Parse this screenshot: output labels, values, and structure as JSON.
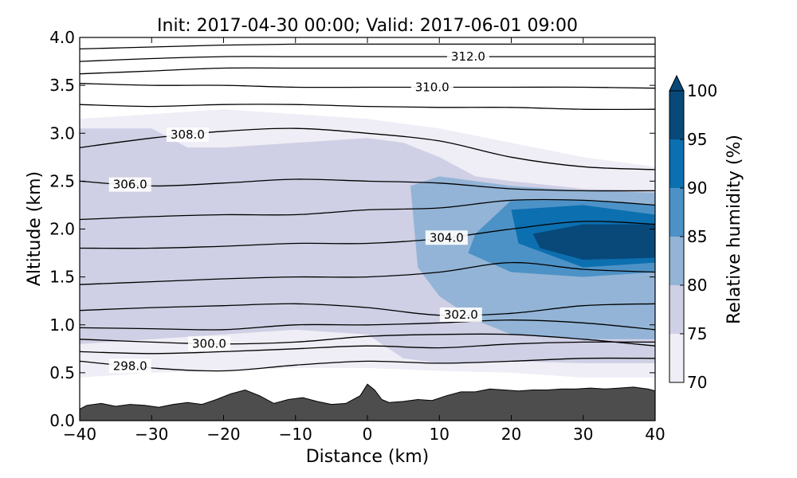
{
  "chart_data": {
    "type": "contour",
    "title": "Init: 2017-04-30 00:00; Valid: 2017-06-01 09:00",
    "xlabel": "Distance (km)",
    "ylabel": "Altitude (km)",
    "xlim": [
      -40,
      40
    ],
    "ylim": [
      0.0,
      4.0
    ],
    "x_ticks": [
      -40,
      -30,
      -20,
      -10,
      0,
      10,
      20,
      30,
      40
    ],
    "x_tick_labels": [
      "−40",
      "−30",
      "−20",
      "−10",
      "0",
      "10",
      "20",
      "30",
      "40"
    ],
    "y_ticks": [
      0.0,
      0.5,
      1.0,
      1.5,
      2.0,
      2.5,
      3.0,
      3.5,
      4.0
    ],
    "y_tick_labels": [
      "0.0",
      "0.5",
      "1.0",
      "1.5",
      "2.0",
      "2.5",
      "3.0",
      "3.5",
      "4.0"
    ],
    "colorbar": {
      "label": "Relative humidity (%)",
      "levels": [
        70,
        75,
        80,
        85,
        90,
        95,
        100
      ],
      "tick_labels": [
        "70",
        "75",
        "80",
        "85",
        "90",
        "95",
        "100"
      ],
      "colors": [
        "#efedf5",
        "#cfcfe5",
        "#93b4d6",
        "#4d92c6",
        "#0c6fb0",
        "#08497a"
      ],
      "extend": "max"
    },
    "terrain": {
      "color": "#4d4d4d",
      "x": [
        -40,
        -39,
        -37,
        -35,
        -33,
        -31,
        -29,
        -27,
        -25,
        -23,
        -21,
        -19,
        -17,
        -15,
        -13,
        -11,
        -9,
        -7,
        -5,
        -3,
        -1,
        0,
        1,
        2,
        3,
        5,
        7,
        9,
        11,
        13,
        15,
        17,
        19,
        21,
        23,
        25,
        27,
        29,
        31,
        33,
        35,
        37,
        38,
        39,
        40
      ],
      "altitude": [
        0.12,
        0.16,
        0.18,
        0.15,
        0.17,
        0.16,
        0.14,
        0.17,
        0.19,
        0.17,
        0.22,
        0.28,
        0.32,
        0.26,
        0.18,
        0.22,
        0.24,
        0.2,
        0.17,
        0.18,
        0.26,
        0.38,
        0.32,
        0.22,
        0.19,
        0.2,
        0.22,
        0.21,
        0.26,
        0.3,
        0.3,
        0.33,
        0.32,
        0.31,
        0.32,
        0.32,
        0.33,
        0.33,
        0.34,
        0.33,
        0.34,
        0.35,
        0.34,
        0.33,
        0.31
      ]
    },
    "rh_shading": [
      {
        "level": 70,
        "x": [
          -40,
          -30,
          -20,
          -10,
          0,
          10,
          20,
          30,
          40,
          40,
          30,
          20,
          10,
          0,
          -10,
          -20,
          -30,
          -40
        ],
        "altitude": [
          3.15,
          3.2,
          3.25,
          3.2,
          3.15,
          3.05,
          2.9,
          2.75,
          2.65,
          0.45,
          0.45,
          0.5,
          0.52,
          0.55,
          0.55,
          0.52,
          0.5,
          0.45
        ]
      },
      {
        "level": 75,
        "x": [
          -40,
          -30,
          -25,
          -20,
          -10,
          0,
          5,
          10,
          15,
          20,
          30,
          40,
          40,
          30,
          20,
          10,
          5,
          0,
          -10,
          -20,
          -30,
          -40
        ],
        "altitude": [
          3.05,
          3.05,
          2.85,
          2.85,
          2.9,
          2.95,
          2.9,
          2.75,
          2.55,
          2.5,
          2.42,
          2.4,
          0.6,
          0.6,
          0.62,
          0.6,
          0.65,
          0.9,
          0.95,
          0.9,
          0.85,
          0.8
        ]
      },
      {
        "level": 80,
        "x": [
          6,
          10,
          15,
          20,
          30,
          40,
          40,
          30,
          20,
          15,
          10,
          7
        ],
        "altitude": [
          2.45,
          2.55,
          2.5,
          2.45,
          2.4,
          2.38,
          0.85,
          0.85,
          0.9,
          1.05,
          1.3,
          1.6
        ]
      },
      {
        "level": 85,
        "x": [
          15,
          20,
          30,
          40,
          40,
          30,
          20,
          14
        ],
        "altitude": [
          1.95,
          2.3,
          2.3,
          2.25,
          1.55,
          1.5,
          1.55,
          1.75
        ]
      },
      {
        "level": 90,
        "x": [
          20,
          30,
          40,
          40,
          30,
          21
        ],
        "altitude": [
          2.2,
          2.25,
          2.15,
          1.65,
          1.6,
          1.85
        ]
      },
      {
        "level": 95,
        "x": [
          23,
          30,
          40,
          40,
          30,
          24
        ],
        "altitude": [
          1.95,
          2.05,
          2.05,
          1.7,
          1.68,
          1.8
        ]
      }
    ],
    "theta_contours": [
      {
        "label": "298.0",
        "x": [
          -40,
          -30,
          -20,
          -10,
          0,
          10,
          20,
          30,
          40
        ],
        "altitude": [
          0.62,
          0.55,
          0.52,
          0.58,
          0.62,
          0.6,
          0.62,
          0.65,
          0.65
        ]
      },
      {
        "label": "",
        "x": [
          -40,
          -30,
          -20,
          -10,
          0,
          10,
          20,
          30,
          40
        ],
        "altitude": [
          0.72,
          0.7,
          0.72,
          0.75,
          0.78,
          0.76,
          0.8,
          0.82,
          0.82
        ]
      },
      {
        "label": "300.0",
        "x": [
          -40,
          -30,
          -20,
          -10,
          0,
          10,
          20,
          30,
          40
        ],
        "altitude": [
          0.85,
          0.82,
          0.8,
          0.82,
          0.88,
          0.9,
          0.9,
          0.85,
          0.78
        ]
      },
      {
        "label": "",
        "x": [
          -40,
          -30,
          -20,
          -10,
          0,
          10,
          20,
          30,
          40
        ],
        "altitude": [
          0.97,
          0.96,
          0.95,
          1.0,
          1.0,
          1.02,
          1.05,
          1.02,
          0.95
        ]
      },
      {
        "label": "302.0",
        "x": [
          -40,
          -30,
          -20,
          -10,
          0,
          10,
          20,
          30,
          40
        ],
        "altitude": [
          1.15,
          1.18,
          1.2,
          1.22,
          1.18,
          1.1,
          1.12,
          1.2,
          1.22
        ]
      },
      {
        "label": "",
        "x": [
          -40,
          -30,
          -20,
          -10,
          0,
          10,
          20,
          30,
          40
        ],
        "altitude": [
          1.42,
          1.45,
          1.48,
          1.5,
          1.5,
          1.55,
          1.65,
          1.58,
          1.55
        ]
      },
      {
        "label": "304.0",
        "x": [
          -40,
          -30,
          -20,
          -10,
          0,
          10,
          20,
          30,
          40
        ],
        "altitude": [
          1.8,
          1.8,
          1.82,
          1.85,
          1.85,
          1.9,
          2.0,
          2.08,
          2.05
        ]
      },
      {
        "label": "",
        "x": [
          -40,
          -30,
          -20,
          -10,
          0,
          10,
          20,
          30,
          40
        ],
        "altitude": [
          2.1,
          2.13,
          2.15,
          2.15,
          2.2,
          2.22,
          2.3,
          2.3,
          2.25
        ]
      },
      {
        "label": "306.0",
        "x": [
          -40,
          -30,
          -20,
          -10,
          0,
          10,
          20,
          30,
          40
        ],
        "altitude": [
          2.5,
          2.45,
          2.48,
          2.52,
          2.5,
          2.48,
          2.42,
          2.4,
          2.4
        ]
      },
      {
        "label": "308.0",
        "x": [
          -40,
          -30,
          -20,
          -10,
          0,
          10,
          20,
          30,
          40
        ],
        "altitude": [
          2.85,
          2.95,
          3.02,
          3.05,
          3.0,
          2.92,
          2.75,
          2.65,
          2.62
        ]
      },
      {
        "label": "",
        "x": [
          -40,
          -30,
          -20,
          -10,
          0,
          10,
          20,
          30,
          40
        ],
        "altitude": [
          3.3,
          3.28,
          3.3,
          3.3,
          3.28,
          3.27,
          3.27,
          3.25,
          3.25
        ]
      },
      {
        "label": "310.0",
        "x": [
          -40,
          -30,
          -20,
          -10,
          0,
          10,
          20,
          30,
          40
        ],
        "altitude": [
          3.52,
          3.5,
          3.5,
          3.48,
          3.48,
          3.48,
          3.48,
          3.48,
          3.47
        ]
      },
      {
        "label": "",
        "x": [
          -40,
          -30,
          -20,
          -10,
          0,
          10,
          20,
          30,
          40
        ],
        "altitude": [
          3.62,
          3.65,
          3.68,
          3.68,
          3.68,
          3.68,
          3.68,
          3.68,
          3.68
        ]
      },
      {
        "label": "312.0",
        "x": [
          -40,
          -30,
          -20,
          -10,
          0,
          10,
          20,
          30,
          40
        ],
        "altitude": [
          3.75,
          3.78,
          3.8,
          3.8,
          3.8,
          3.8,
          3.8,
          3.8,
          3.8
        ]
      },
      {
        "label": "",
        "x": [
          -40,
          -30,
          -20,
          -10,
          0,
          10,
          20,
          30,
          40
        ],
        "altitude": [
          3.88,
          3.9,
          3.92,
          3.93,
          3.93,
          3.93,
          3.93,
          3.93,
          3.93
        ]
      }
    ]
  }
}
